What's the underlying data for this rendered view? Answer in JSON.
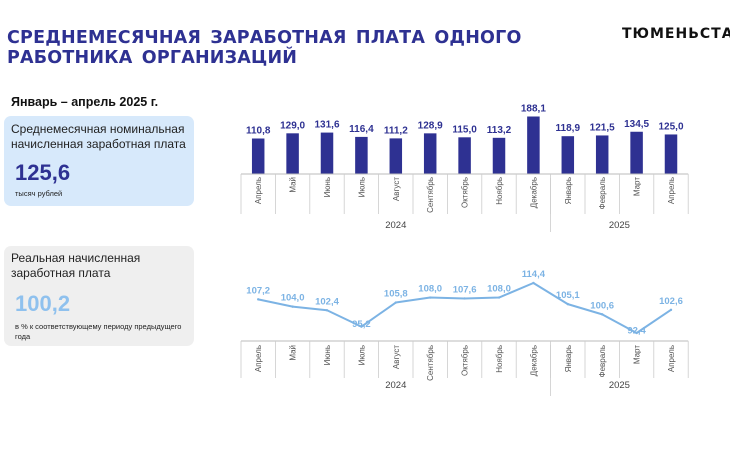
{
  "header": {
    "title_line1": "СРЕДНЕМЕСЯЧНАЯ ЗАРАБОТНАЯ ПЛАТА ОДНОГО",
    "title_line2": "РАБОТНИКА ОРГАНИЗАЦИЙ",
    "brand": "ТЮМЕНЬСТАТ",
    "period": "Январь – апрель 2025 г."
  },
  "nominal_card": {
    "label": "Среднемесячная номинальная начисленная заработная плата",
    "value": "125,6",
    "unit": "тысяч рублей"
  },
  "real_card": {
    "label": "Реальная начисленная заработная плата",
    "value": "100,2",
    "unit": "в % к соответствующему периоду предыдущего года"
  },
  "colors": {
    "accent": "#2e3192",
    "bar": "#2e3192",
    "line": "#7cb3e4",
    "card_nominal": "#d7e9fb",
    "card_real": "#efefef"
  },
  "chart_data": [
    {
      "type": "bar",
      "categories": [
        "Апрель",
        "Май",
        "Июнь",
        "Июль",
        "Август",
        "Сентябрь",
        "Октябрь",
        "Ноябрь",
        "Декабрь",
        "Январь",
        "Февраль",
        "Март",
        "Апрель"
      ],
      "values": [
        110.8,
        129.0,
        131.6,
        116.4,
        111.2,
        128.9,
        115.0,
        113.2,
        188.1,
        118.9,
        121.5,
        134.5,
        125.0
      ],
      "value_labels": [
        "110,8",
        "129,0",
        "131,6",
        "116,4",
        "111,2",
        "128,9",
        "115,0",
        "113,2",
        "188,1",
        "118,9",
        "121,5",
        "134,5",
        "125,0"
      ],
      "year_groups": [
        {
          "label": "2024",
          "start": 0,
          "end": 8
        },
        {
          "label": "2025",
          "start": 9,
          "end": 12
        }
      ],
      "ylim": [
        0,
        188.1
      ],
      "grid": false
    },
    {
      "type": "line",
      "categories": [
        "Апрель",
        "Май",
        "Июнь",
        "Июль",
        "Август",
        "Сентябрь",
        "Октябрь",
        "Ноябрь",
        "Декабрь",
        "Январь",
        "Февраль",
        "Март",
        "Апрель"
      ],
      "values": [
        107.2,
        104.0,
        102.4,
        95.2,
        105.8,
        108.0,
        107.6,
        108.0,
        114.4,
        105.1,
        100.6,
        92.4,
        102.6
      ],
      "value_labels": [
        "107,2",
        "104,0",
        "102,4",
        "95,2",
        "105,8",
        "108,0",
        "107,6",
        "108,0",
        "114,4",
        "105,1",
        "100,6",
        "92,4",
        "102,6"
      ],
      "year_groups": [
        {
          "label": "2024",
          "start": 0,
          "end": 8
        },
        {
          "label": "2025",
          "start": 9,
          "end": 12
        }
      ],
      "ylim": [
        92.4,
        114.4
      ],
      "grid": false
    }
  ]
}
